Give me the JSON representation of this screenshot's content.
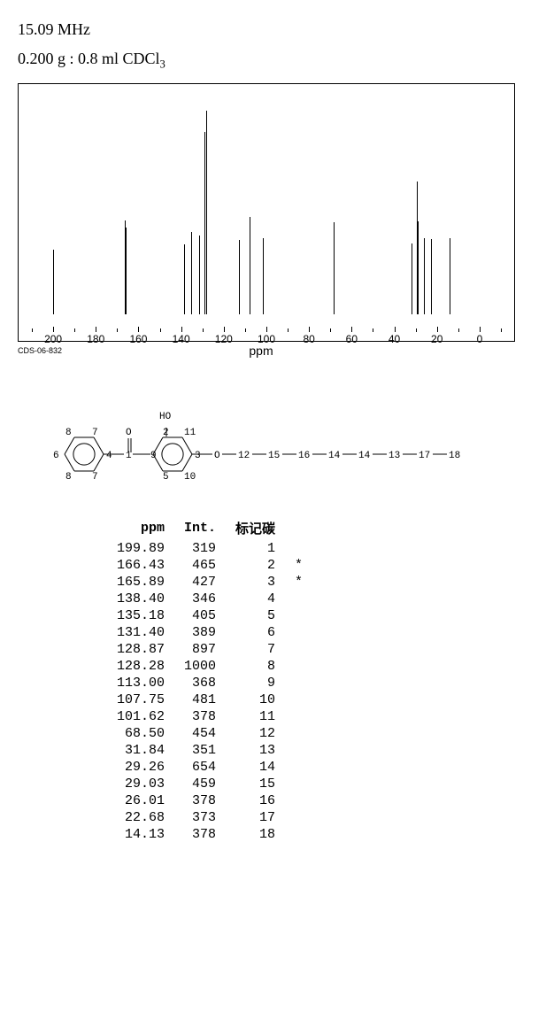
{
  "header": {
    "line1_freq": "15.09 MHz",
    "line2_sample_prefix": "0.200 g : 0.8 ml CDCl",
    "line2_sub": "3"
  },
  "spectrum": {
    "id_label": "CDS-06-832",
    "axis_label": "ppm",
    "xlim": [
      -10,
      210
    ],
    "ticks": [
      200,
      180,
      160,
      140,
      120,
      100,
      80,
      60,
      40,
      20,
      0
    ],
    "background_color": "#ffffff",
    "peak_color": "#000000",
    "peaks": [
      {
        "ppm": 199.89,
        "int": 319
      },
      {
        "ppm": 166.43,
        "int": 465
      },
      {
        "ppm": 165.89,
        "int": 427
      },
      {
        "ppm": 138.4,
        "int": 346
      },
      {
        "ppm": 135.18,
        "int": 405
      },
      {
        "ppm": 131.4,
        "int": 389
      },
      {
        "ppm": 128.87,
        "int": 897
      },
      {
        "ppm": 128.28,
        "int": 1000
      },
      {
        "ppm": 113.0,
        "int": 368
      },
      {
        "ppm": 107.75,
        "int": 481
      },
      {
        "ppm": 101.62,
        "int": 378
      },
      {
        "ppm": 68.5,
        "int": 454
      },
      {
        "ppm": 31.84,
        "int": 351
      },
      {
        "ppm": 29.26,
        "int": 654
      },
      {
        "ppm": 29.03,
        "int": 459
      },
      {
        "ppm": 26.01,
        "int": 378
      },
      {
        "ppm": 22.68,
        "int": 373
      },
      {
        "ppm": 14.13,
        "int": 378
      }
    ]
  },
  "structure": {
    "ho_label": "HO",
    "chain_labels": [
      "O",
      "12",
      "15",
      "16",
      "14",
      "14",
      "13",
      "17",
      "18"
    ],
    "ring1_numbers": [
      "6",
      "8",
      "7",
      "8",
      "7",
      "4"
    ],
    "ring2_numbers": [
      "2",
      "11",
      "9",
      "5",
      "10",
      "3"
    ],
    "carbonyl_label": "O",
    "link_1": "1"
  },
  "table": {
    "headers": {
      "ppm": "ppm",
      "int": "Int.",
      "carbon": "标记碳"
    },
    "rows": [
      {
        "ppm": "199.89",
        "int": "319",
        "c": "1",
        "star": ""
      },
      {
        "ppm": "166.43",
        "int": "465",
        "c": "2",
        "star": "*"
      },
      {
        "ppm": "165.89",
        "int": "427",
        "c": "3",
        "star": "*"
      },
      {
        "ppm": "138.40",
        "int": "346",
        "c": "4",
        "star": ""
      },
      {
        "ppm": "135.18",
        "int": "405",
        "c": "5",
        "star": ""
      },
      {
        "ppm": "131.40",
        "int": "389",
        "c": "6",
        "star": ""
      },
      {
        "ppm": "128.87",
        "int": "897",
        "c": "7",
        "star": ""
      },
      {
        "ppm": "128.28",
        "int": "1000",
        "c": "8",
        "star": ""
      },
      {
        "ppm": "113.00",
        "int": "368",
        "c": "9",
        "star": ""
      },
      {
        "ppm": "107.75",
        "int": "481",
        "c": "10",
        "star": ""
      },
      {
        "ppm": "101.62",
        "int": "378",
        "c": "11",
        "star": ""
      },
      {
        "ppm": "68.50",
        "int": "454",
        "c": "12",
        "star": ""
      },
      {
        "ppm": "31.84",
        "int": "351",
        "c": "13",
        "star": ""
      },
      {
        "ppm": "29.26",
        "int": "654",
        "c": "14",
        "star": ""
      },
      {
        "ppm": "29.03",
        "int": "459",
        "c": "15",
        "star": ""
      },
      {
        "ppm": "26.01",
        "int": "378",
        "c": "16",
        "star": ""
      },
      {
        "ppm": "22.68",
        "int": "373",
        "c": "17",
        "star": ""
      },
      {
        "ppm": "14.13",
        "int": "378",
        "c": "18",
        "star": ""
      }
    ]
  }
}
